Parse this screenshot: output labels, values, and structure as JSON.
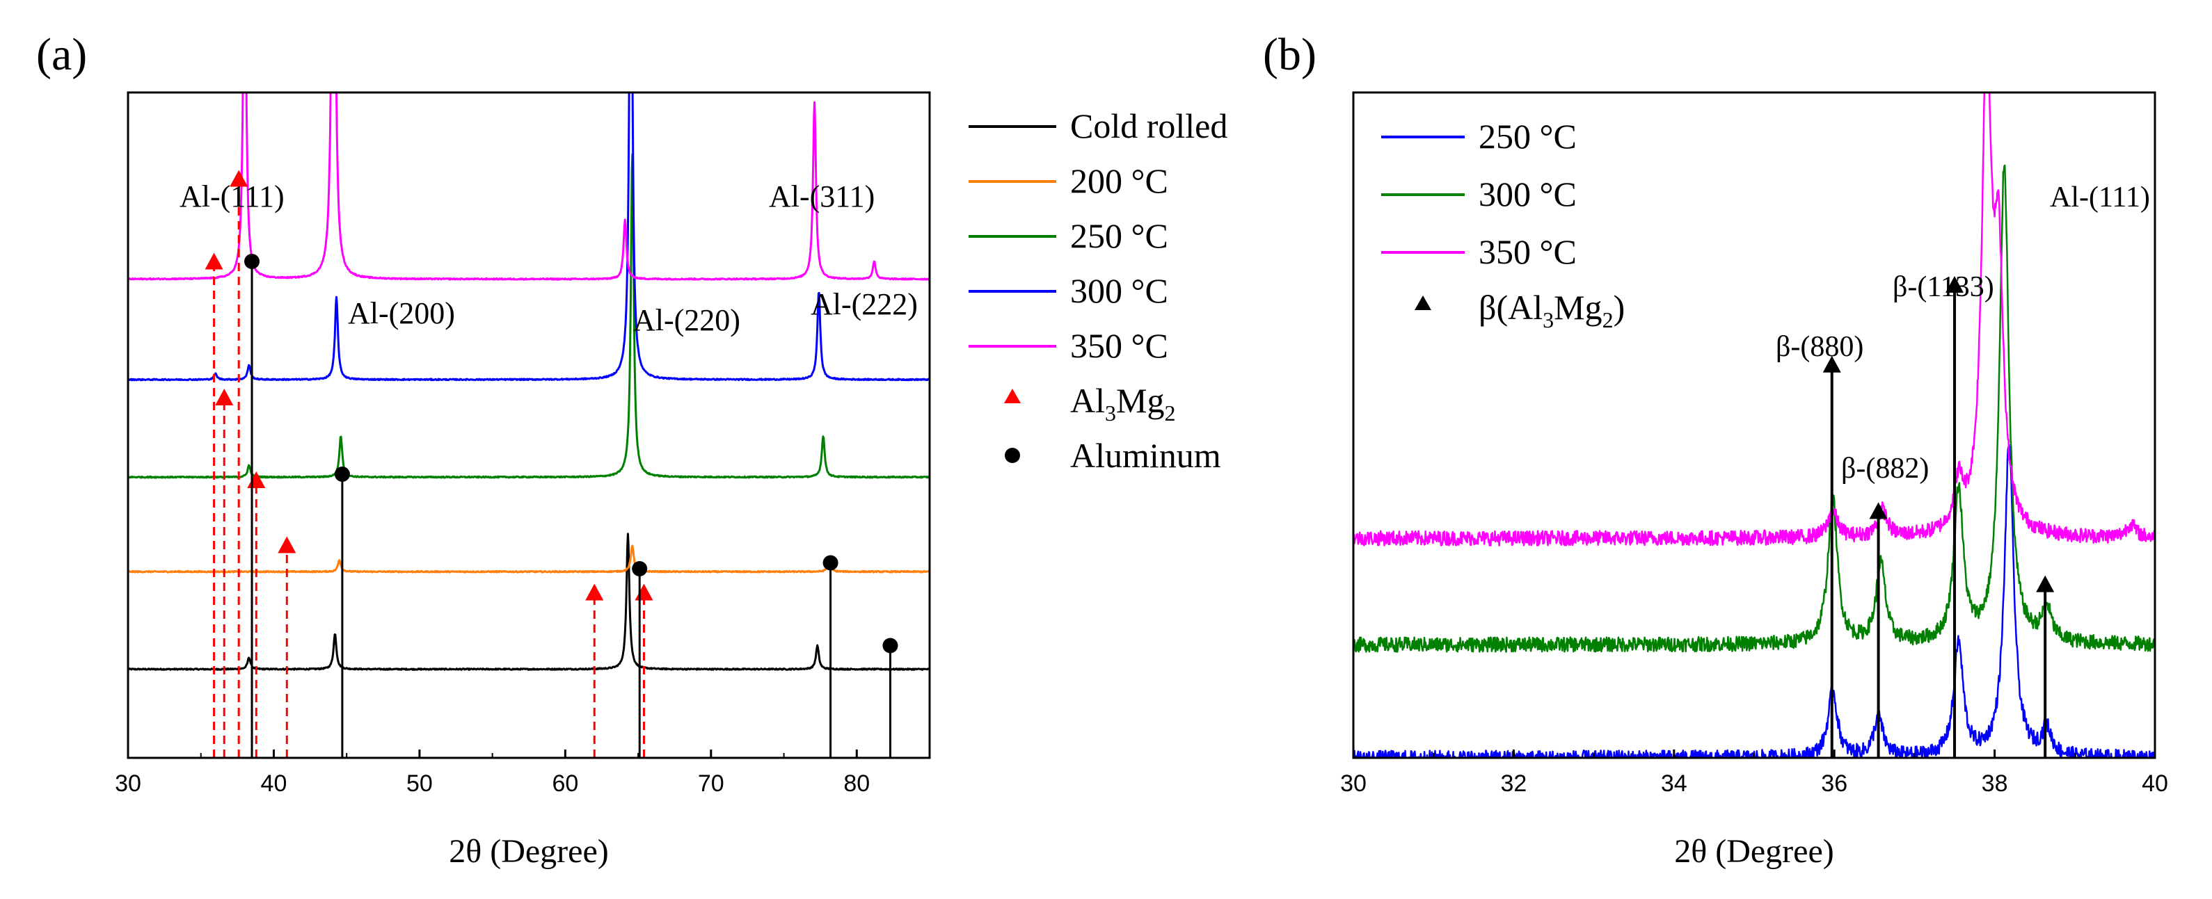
{
  "chart_data": [
    {
      "panel": "(a)",
      "type": "line",
      "title": "",
      "xlabel": "2θ (Degree)",
      "ylabel": "",
      "xlim": [
        30,
        85
      ],
      "xticks": [
        "30",
        "40",
        "50",
        "60",
        "70",
        "80"
      ],
      "y_visible": false,
      "series": [
        {
          "name": "Cold rolled",
          "color": "#000000",
          "baseline": 0.15,
          "peaks": [
            [
              38.3,
              0.02
            ],
            [
              44.2,
              0.06
            ],
            [
              64.3,
              0.23
            ],
            [
              77.3,
              0.04
            ]
          ]
        },
        {
          "name": "200 °C",
          "color": "#ff7f0e",
          "baseline": 0.315,
          "peaks": [
            [
              44.5,
              0.02
            ],
            [
              64.6,
              0.045
            ],
            [
              78.1,
              0.02
            ]
          ]
        },
        {
          "name": "250 °C",
          "color": "#008000",
          "baseline": 0.475,
          "peaks": [
            [
              38.3,
              0.02
            ],
            [
              44.6,
              0.07
            ],
            [
              64.6,
              0.55
            ],
            [
              77.7,
              0.07
            ]
          ]
        },
        {
          "name": "300 °C",
          "color": "#0000ff",
          "baseline": 0.64,
          "peaks": [
            [
              36.0,
              0.01
            ],
            [
              38.3,
              0.025
            ],
            [
              44.3,
              0.14
            ],
            [
              64.5,
              0.96
            ],
            [
              77.4,
              0.15
            ]
          ]
        },
        {
          "name": "350 °C",
          "color": "#ff00ff",
          "baseline": 0.81,
          "peaks": [
            [
              38.0,
              0.65
            ],
            [
              44.1,
              1.2
            ],
            [
              64.1,
              0.1
            ],
            [
              77.1,
              0.3
            ],
            [
              81.2,
              0.03
            ]
          ]
        }
      ],
      "markers": {
        "al3mg2": {
          "label": "Al3Mg2",
          "color": "#ff0000",
          "positions": [
            [
              35.9,
              0.85
            ],
            [
              36.6,
              0.62
            ],
            [
              37.6,
              0.99
            ],
            [
              38.8,
              0.48
            ],
            [
              40.9,
              0.37
            ],
            [
              62.0,
              0.29
            ],
            [
              65.4,
              0.29
            ]
          ]
        },
        "aluminum": {
          "label": "Aluminum",
          "color": "#000000",
          "positions": [
            [
              38.5,
              0.84
            ],
            [
              44.7,
              0.48
            ],
            [
              65.1,
              0.32
            ],
            [
              78.2,
              0.33
            ],
            [
              82.3,
              0.19
            ]
          ]
        }
      },
      "legend": {
        "position": "outside-right",
        "entries": [
          "Cold rolled",
          "200 °C",
          "250 °C",
          "300 °C",
          "350 °C",
          "Al3Mg2",
          "Aluminum"
        ]
      },
      "annotations": [
        "Al-(111)",
        "Al-(200)",
        "Al-(220)",
        "Al-(311)",
        "Al-(222)"
      ]
    },
    {
      "panel": "(b)",
      "type": "line",
      "title": "",
      "xlabel": "2θ (Degree)",
      "ylabel": "",
      "xlim": [
        30,
        40
      ],
      "xticks": [
        "30",
        "32",
        "34",
        "36",
        "38",
        "40"
      ],
      "y_visible": false,
      "series": [
        {
          "name": "250 °C",
          "color": "#0000ff",
          "baseline": 0.0,
          "peaks": [
            [
              35.98,
              0.1
            ],
            [
              36.55,
              0.06
            ],
            [
              37.55,
              0.17
            ],
            [
              38.18,
              0.47
            ],
            [
              38.65,
              0.04
            ]
          ]
        },
        {
          "name": "300 °C",
          "color": "#008000",
          "baseline": 0.17,
          "peaks": [
            [
              35.98,
              0.22
            ],
            [
              36.58,
              0.12
            ],
            [
              37.55,
              0.23
            ],
            [
              38.12,
              0.72
            ],
            [
              38.65,
              0.05
            ]
          ]
        },
        {
          "name": "350 °C",
          "color": "#ff00ff",
          "baseline": 0.33,
          "peaks": [
            [
              35.98,
              0.04
            ],
            [
              36.6,
              0.04
            ],
            [
              37.55,
              0.07
            ],
            [
              37.9,
              0.72
            ],
            [
              38.05,
              0.38
            ],
            [
              39.7,
              0.02
            ]
          ]
        }
      ],
      "markers": {
        "beta": {
          "label": "β(Al3Mg2)",
          "color": "#000000",
          "positions": [
            [
              35.97,
              0.6
            ],
            [
              36.55,
              0.38
            ],
            [
              37.5,
              0.72
            ],
            [
              38.63,
              0.27
            ]
          ]
        }
      },
      "legend": {
        "position": "top-left",
        "entries": [
          "250 °C",
          "300 °C",
          "350 °C",
          "β(Al3Mg2)"
        ]
      },
      "annotations": [
        "Al-(111)",
        "β-(880)",
        "β-(882)",
        "β-(1133)"
      ]
    }
  ],
  "panel_a": {
    "label": "(a)",
    "xlabel": "2θ (Degree)",
    "ticks": [
      "30",
      "40",
      "50",
      "60",
      "70",
      "80"
    ],
    "annotations": {
      "al111": "Al-(111)",
      "al200": "Al-(200)",
      "al220": "Al-(220)",
      "al311": "Al-(311)",
      "al222": "Al-(222)"
    },
    "legend": {
      "cold_rolled": "Cold rolled",
      "t200": "200 °C",
      "t250": "250 °C",
      "t300": "300 °C",
      "t350": "350 °C",
      "al3mg2_base": "Al",
      "al3mg2_sub1": "3",
      "al3mg2_mid": "Mg",
      "al3mg2_sub2": "2",
      "aluminum": "Aluminum"
    }
  },
  "panel_b": {
    "label": "(b)",
    "xlabel": "2θ (Degree)",
    "ticks": [
      "30",
      "32",
      "34",
      "36",
      "38",
      "40"
    ],
    "annotations": {
      "al111": "Al-(111)",
      "b880": "β-(880)",
      "b882": "β-(882)",
      "b1133": "β-(1133)"
    },
    "legend": {
      "t250": "250 °C",
      "t300": "300 °C",
      "t350": "350 °C",
      "beta_pre": "β(Al",
      "beta_sub1": "3",
      "beta_mid": "Mg",
      "beta_sub2": "2",
      "beta_post": ")"
    }
  }
}
